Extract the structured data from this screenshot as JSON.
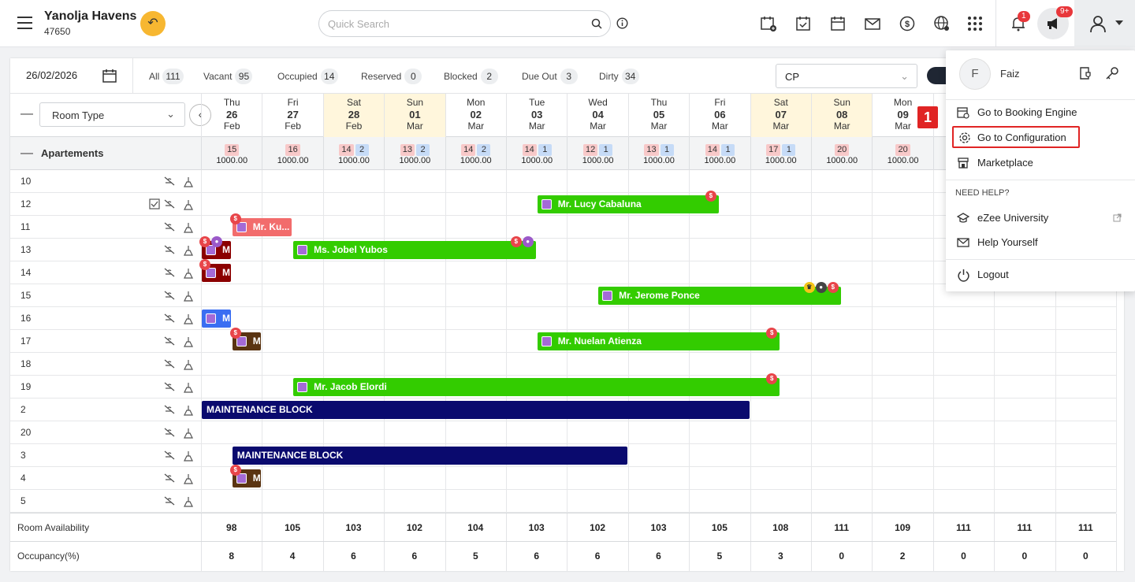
{
  "header": {
    "hotel_name": "Yanolja Havens",
    "hotel_id": "47650",
    "search_placeholder": "Quick Search",
    "notif_count": "1",
    "announce_count": "9+"
  },
  "filters": {
    "date": "26/02/2026",
    "chips": [
      {
        "label": "All",
        "count": "111"
      },
      {
        "label": "Vacant",
        "count": "95"
      },
      {
        "label": "Occupied",
        "count": "14"
      },
      {
        "label": "Reserved",
        "count": "0"
      },
      {
        "label": "Blocked",
        "count": "2"
      },
      {
        "label": "Due Out",
        "count": "3"
      },
      {
        "label": "Dirty",
        "count": "34"
      }
    ],
    "rate_plan": "CP"
  },
  "grid": {
    "room_type_select": "Room Type",
    "group_label": "Apartements",
    "days": [
      {
        "dow": "Thu",
        "day": "26",
        "mon": "Feb",
        "we": false,
        "r": "15",
        "b": "",
        "rate": "1000.00"
      },
      {
        "dow": "Fri",
        "day": "27",
        "mon": "Feb",
        "we": false,
        "r": "16",
        "b": "",
        "rate": "1000.00"
      },
      {
        "dow": "Sat",
        "day": "28",
        "mon": "Feb",
        "we": true,
        "r": "14",
        "b": "2",
        "rate": "1000.00"
      },
      {
        "dow": "Sun",
        "day": "01",
        "mon": "Mar",
        "we": true,
        "r": "13",
        "b": "2",
        "rate": "1000.00"
      },
      {
        "dow": "Mon",
        "day": "02",
        "mon": "Mar",
        "we": false,
        "r": "14",
        "b": "2",
        "rate": "1000.00"
      },
      {
        "dow": "Tue",
        "day": "03",
        "mon": "Mar",
        "we": false,
        "r": "14",
        "b": "1",
        "rate": "1000.00"
      },
      {
        "dow": "Wed",
        "day": "04",
        "mon": "Mar",
        "we": false,
        "r": "12",
        "b": "1",
        "rate": "1000.00"
      },
      {
        "dow": "Thu",
        "day": "05",
        "mon": "Mar",
        "we": false,
        "r": "13",
        "b": "1",
        "rate": "1000.00"
      },
      {
        "dow": "Fri",
        "day": "06",
        "mon": "Mar",
        "we": false,
        "r": "14",
        "b": "1",
        "rate": "1000.00"
      },
      {
        "dow": "Sat",
        "day": "07",
        "mon": "Mar",
        "we": true,
        "r": "17",
        "b": "1",
        "rate": "1000.00"
      },
      {
        "dow": "Sun",
        "day": "08",
        "mon": "Mar",
        "we": true,
        "r": "20",
        "b": "",
        "rate": "1000.00"
      },
      {
        "dow": "Mon",
        "day": "09",
        "mon": "Mar",
        "we": false,
        "r": "20",
        "b": "",
        "rate": "1000.00"
      },
      {
        "dow": "",
        "day": "",
        "mon": "",
        "we": false,
        "r": "",
        "b": "",
        "rate": ""
      },
      {
        "dow": "",
        "day": "",
        "mon": "",
        "we": false,
        "r": "",
        "b": "",
        "rate": ""
      },
      {
        "dow": "",
        "day": "",
        "mon": "",
        "we": false,
        "r": "",
        "b": "",
        "rate": ""
      }
    ],
    "rooms": [
      "10",
      "12",
      "11",
      "13",
      "14",
      "15",
      "16",
      "17",
      "18",
      "19",
      "2",
      "20",
      "3",
      "4",
      "5"
    ],
    "bookings": [
      {
        "row": 1,
        "start": 5.5,
        "span": 3,
        "color": "green",
        "name": "Mr. Lucy Cabaluna",
        "ind": [
          "money"
        ]
      },
      {
        "row": 2,
        "start": 0.5,
        "span": 1,
        "color": "red",
        "name": "Mr. Ku...",
        "ind": [
          "money"
        ]
      },
      {
        "row": 3,
        "start": 0,
        "span": 0.5,
        "color": "dred",
        "name": "M",
        "ind": [
          "money",
          "user"
        ]
      },
      {
        "row": 3,
        "start": 1.5,
        "span": 4,
        "color": "green",
        "name": "Ms. Jobel Yubos",
        "ind": [
          "money",
          "user"
        ]
      },
      {
        "row": 4,
        "start": 0,
        "span": 0.5,
        "color": "dred",
        "name": "M",
        "ind": [
          "money"
        ]
      },
      {
        "row": 5,
        "start": 6.5,
        "span": 4,
        "color": "green",
        "name": "Mr. Jerome Ponce",
        "ind": [
          "crown",
          "blk",
          "money"
        ]
      },
      {
        "row": 6,
        "start": 0,
        "span": 0.5,
        "color": "blue",
        "name": "M",
        "ind": []
      },
      {
        "row": 7,
        "start": 0.5,
        "span": 0.5,
        "color": "brown",
        "name": "M",
        "ind": [
          "money"
        ]
      },
      {
        "row": 7,
        "start": 5.5,
        "span": 4,
        "color": "green",
        "name": "Mr. Nuelan Atienza",
        "ind": [
          "money"
        ]
      },
      {
        "row": 9,
        "start": 1.5,
        "span": 8,
        "color": "green",
        "name": "Mr. Jacob Elordi",
        "ind": [
          "money"
        ]
      },
      {
        "row": 10,
        "start": 0,
        "span": 9,
        "color": "navy",
        "name": "MAINTENANCE BLOCK",
        "ind": []
      },
      {
        "row": 12,
        "start": 0.5,
        "span": 6.5,
        "color": "navy",
        "name": "MAINTENANCE BLOCK",
        "ind": []
      },
      {
        "row": 13,
        "start": 0.5,
        "span": 0.5,
        "color": "brown",
        "name": "M",
        "ind": [
          "money"
        ]
      }
    ],
    "availability_label": "Room Availability",
    "availability": [
      "98",
      "105",
      "103",
      "102",
      "104",
      "103",
      "102",
      "103",
      "105",
      "108",
      "111",
      "109",
      "111",
      "111",
      "111"
    ],
    "occupancy_label": "Occupancy(%)",
    "occupancy": [
      "8",
      "4",
      "6",
      "6",
      "5",
      "6",
      "6",
      "6",
      "5",
      "3",
      "0",
      "2",
      "0",
      "0",
      "0"
    ]
  },
  "user_menu": {
    "avatar": "F",
    "name": "Faiz",
    "booking_engine": "Go to Booking Engine",
    "configuration": "Go to Configuration",
    "marketplace": "Marketplace",
    "help_title": "NEED HELP?",
    "university": "eZee University",
    "help_yourself": "Help Yourself",
    "logout": "Logout"
  },
  "step_marker": "1"
}
